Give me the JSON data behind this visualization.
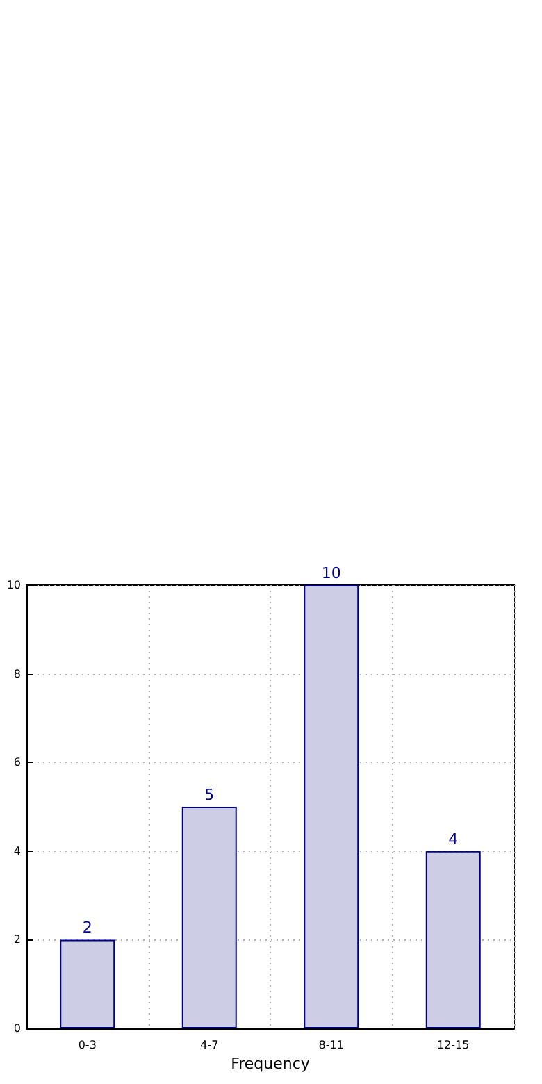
{
  "chart_data": {
    "type": "bar",
    "xlabel": "Frequency",
    "categories": [
      "0-3",
      "4-7",
      "8-11",
      "12-15"
    ],
    "values": [
      2,
      5,
      10,
      4
    ],
    "color": "#cdcde6",
    "ylim": [
      0,
      10
    ],
    "yticks": [
      0,
      2,
      4,
      6,
      8,
      10
    ],
    "grid": true,
    "data_labels": true
  }
}
